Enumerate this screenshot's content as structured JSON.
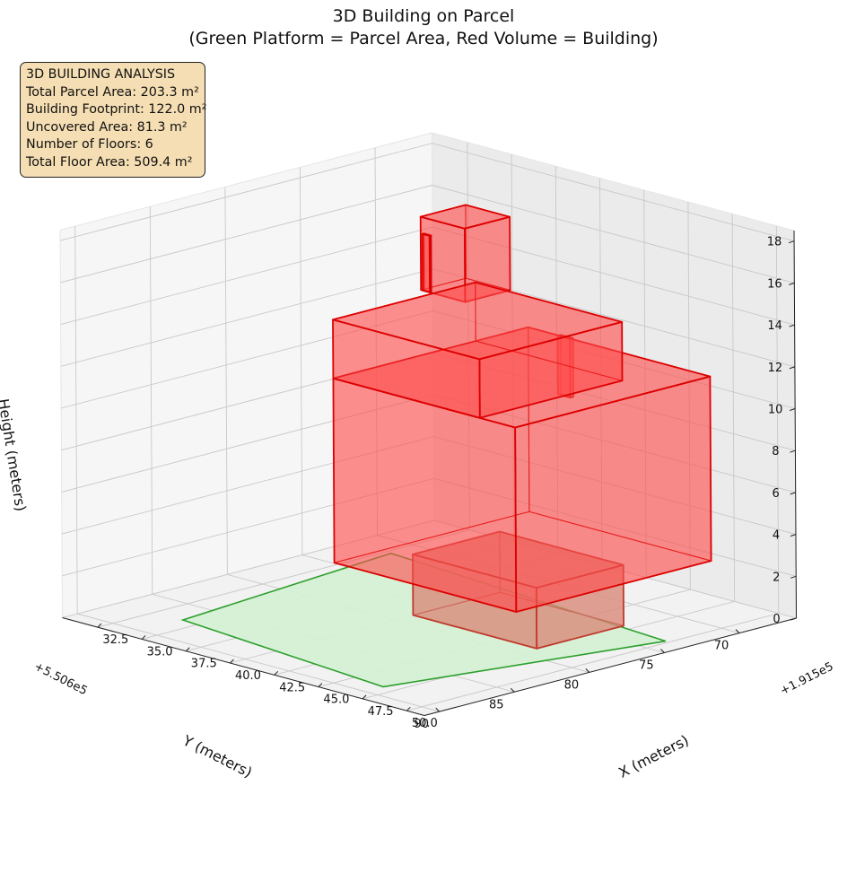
{
  "figure": {
    "title_line1": "3D Building on Parcel",
    "title_line2": "(Green Platform = Parcel Area, Red Volume = Building)"
  },
  "info_box": {
    "heading": "3D BUILDING ANALYSIS",
    "lines": [
      "Total Parcel Area: 203.3 m²",
      "Building Footprint: 122.0 m²",
      "Uncovered Area: 81.3 m²",
      "Number of Floors: 6",
      "Total Floor Area: 509.4 m²"
    ]
  },
  "chart_data": {
    "type": "3d-polygons",
    "title": "3D Building on Parcel\n(Green Platform = Parcel Area, Red Volume = Building)",
    "xlabel": "X (meters)",
    "ylabel": "Y (meters)",
    "zlabel": "Height (meters)",
    "x_offset_label": "+1.915e5",
    "y_offset_label": "+5.506e5",
    "x_ticks": [
      "32.5",
      "35.0",
      "37.5",
      "40.0",
      "42.5",
      "45.0",
      "47.5",
      "50.0"
    ],
    "y_ticks": [
      "70",
      "75",
      "80",
      "85",
      "90"
    ],
    "z_ticks": [
      "0",
      "2",
      "4",
      "6",
      "8",
      "10",
      "12",
      "14",
      "16",
      "18"
    ],
    "xlim": [
      30.5,
      51
    ],
    "ylim": [
      66.2,
      91
    ],
    "zlim": [
      0,
      18.5
    ],
    "view": {
      "elev": 22,
      "azim": 45
    },
    "colors": {
      "parcel_fill": "#d5f0d5",
      "parcel_edge": "#2ca02c",
      "building_fill": "#ff4d4d",
      "building_edge": "#dd0000",
      "ground_block_fill": "#d98a7a",
      "ground_block_edge": "#c0392b"
    },
    "parcel": {
      "name": "Parcel",
      "polygon": [
        [
          32.8,
          71.8
        ],
        [
          49.8,
          73.5
        ],
        [
          46.8,
          88.8
        ],
        [
          34.1,
          87.2
        ]
      ],
      "z": 0
    },
    "buildings": [
      {
        "name": "ground-block",
        "x": [
          40.0,
          47.0
        ],
        "y": [
          73.0,
          78.8
        ],
        "z": [
          0,
          2.9
        ]
      },
      {
        "name": "floors-1-3",
        "x": [
          38.7,
          49.0
        ],
        "y": [
          69.5,
          82.5
        ],
        "z": [
          2.9,
          11.7
        ]
      },
      {
        "name": "floors-4-5",
        "x": [
          38.7,
          47.0
        ],
        "y": [
          73.0,
          82.5
        ],
        "z": [
          11.7,
          14.5
        ]
      },
      {
        "name": "rooftop",
        "x": [
          38.0,
          40.5
        ],
        "y": [
          72.8,
          75.8
        ],
        "z": [
          14.5,
          18.0
        ]
      },
      {
        "name": "rooftop-slit",
        "x": [
          38.1,
          38.5
        ],
        "y": [
          75.7,
          75.8
        ],
        "z": [
          14.5,
          17.2
        ]
      },
      {
        "name": "side-fin",
        "x": [
          44.2,
          44.9
        ],
        "y": [
          73.8,
          74.0
        ],
        "z": [
          10.6,
          13.4
        ]
      }
    ]
  }
}
